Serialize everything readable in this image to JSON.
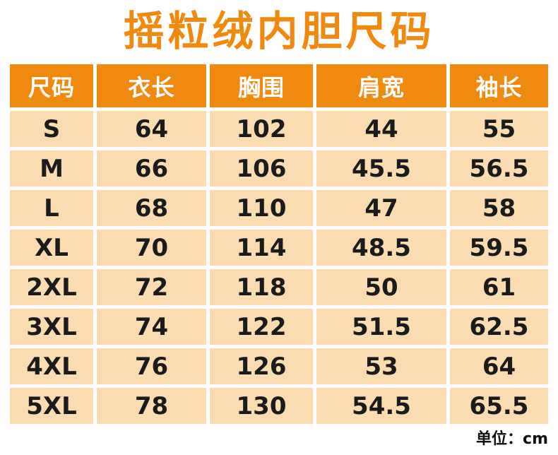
{
  "title": "摇粒绒内胆尺码",
  "unit_note": "单位：cm",
  "colors": {
    "accent_orange": "#F0890F",
    "cell_peach": "#FBDCB1",
    "header_text": "#FFFFFF",
    "body_text": "#1B1B1B",
    "background": "#FFFFFF"
  },
  "chart_data": {
    "type": "table",
    "title": "摇粒绒内胆尺码",
    "unit": "cm",
    "columns": [
      "尺码",
      "衣长",
      "胸围",
      "肩宽",
      "袖长"
    ],
    "rows": [
      [
        "S",
        "64",
        "102",
        "44",
        "55"
      ],
      [
        "M",
        "66",
        "106",
        "45.5",
        "56.5"
      ],
      [
        "L",
        "68",
        "110",
        "47",
        "58"
      ],
      [
        "XL",
        "70",
        "114",
        "48.5",
        "59.5"
      ],
      [
        "2XL",
        "72",
        "118",
        "50",
        "61"
      ],
      [
        "3XL",
        "74",
        "122",
        "51.5",
        "62.5"
      ],
      [
        "4XL",
        "76",
        "126",
        "53",
        "64"
      ],
      [
        "5XL",
        "78",
        "130",
        "54.5",
        "65.5"
      ]
    ]
  }
}
